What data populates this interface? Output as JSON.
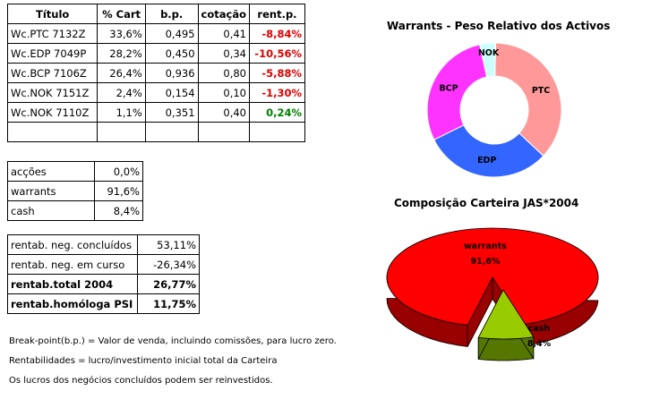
{
  "table": {
    "headers": [
      "Título",
      "% Cart",
      "b.p.",
      "cotação",
      "rent.p."
    ],
    "rows": [
      {
        "titulo": "Wc.PTC 7132Z",
        "cart": "33,6%",
        "bp": "0,495",
        "cot": "0,41",
        "rent": "-8,84%",
        "sign": "neg"
      },
      {
        "titulo": "Wc.EDP 7049P",
        "cart": "28,2%",
        "bp": "0,450",
        "cot": "0,34",
        "rent": "-10,56%",
        "sign": "neg"
      },
      {
        "titulo": "Wc.BCP 7106Z",
        "cart": "26,4%",
        "bp": "0,936",
        "cot": "0,80",
        "rent": "-5,88%",
        "sign": "neg"
      },
      {
        "titulo": "Wc.NOK 7151Z",
        "cart": "2,4%",
        "bp": "0,154",
        "cot": "0,10",
        "rent": "-1,30%",
        "sign": "neg"
      },
      {
        "titulo": "Wc.NOK 7110Z",
        "cart": "1,1%",
        "bp": "0,351",
        "cot": "0,40",
        "rent": "0,24%",
        "sign": "pos"
      },
      {
        "titulo": "",
        "cart": "",
        "bp": "",
        "cot": "",
        "rent": "",
        "sign": ""
      }
    ]
  },
  "allocation": [
    {
      "label": "acções",
      "value": "0,0%"
    },
    {
      "label": "warrants",
      "value": "91,6%"
    },
    {
      "label": "cash",
      "value": "8,4%"
    }
  ],
  "rentab": [
    {
      "label": "rentab. neg. concluídos",
      "value": "53,11%",
      "bold": false
    },
    {
      "label": "rentab. neg. em curso",
      "value": "-26,34%",
      "bold": false
    },
    {
      "label": "rentab.total 2004",
      "value": "26,77%",
      "bold": true
    },
    {
      "label": "rentab.homóloga PSI",
      "value": "11,75%",
      "bold": true
    }
  ],
  "notes": [
    "Break-point(b.p.) = Valor de venda, incluindo comissões, para lucro zero.",
    "Rentabilidades = lucro/investimento inicial total da Carteira",
    "Os lucros dos negócios concluídos podem ser reinvestidos."
  ],
  "chart_data": [
    {
      "type": "pie",
      "variant": "donut",
      "title": "Warrants - Peso Relativo dos Activos",
      "categories": [
        "PTC",
        "EDP",
        "BCP",
        "NOK"
      ],
      "values": [
        33.6,
        28.2,
        26.4,
        3.5
      ],
      "colors": [
        "#ff9999",
        "#3366ff",
        "#ff33ff",
        "#ccffff"
      ]
    },
    {
      "type": "pie",
      "variant": "3d-exploded",
      "title": "Composição Carteira JAS*2004",
      "categories": [
        "warrants",
        "cash"
      ],
      "values": [
        91.6,
        8.4
      ],
      "value_labels": [
        "91,6%",
        "8,4%"
      ],
      "colors": [
        "#ff0000",
        "#99cc00"
      ]
    }
  ]
}
